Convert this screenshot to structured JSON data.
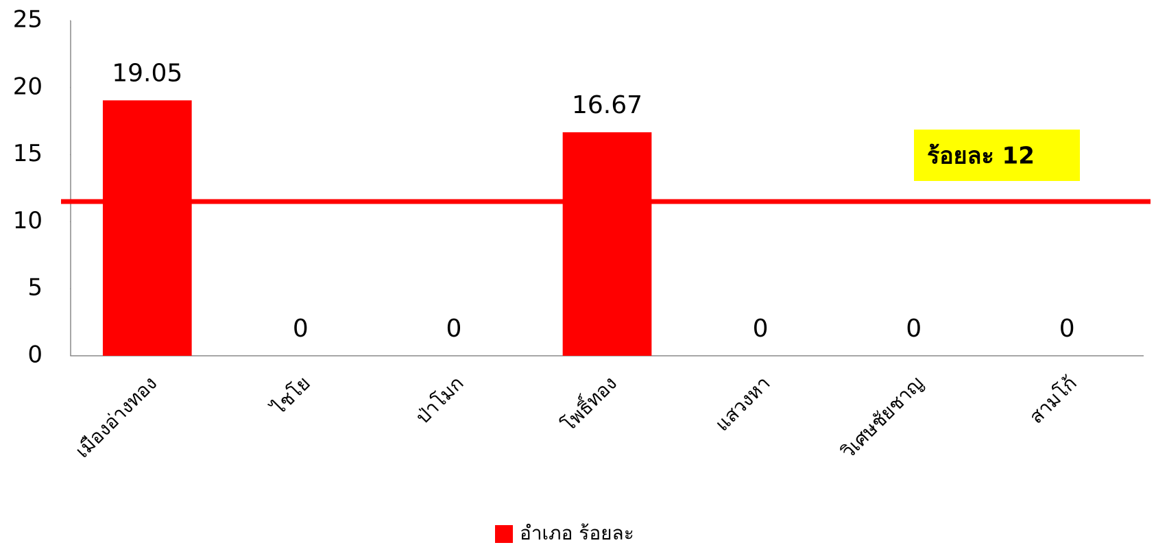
{
  "chart_data": {
    "type": "bar",
    "categories": [
      "เมืองอ่างทอง",
      "ไชโย",
      "ป่าโมก",
      "โพธิ์ทอง",
      "แสวงหา",
      "วิเศษชัยชาญ",
      "สามโก้"
    ],
    "series": [
      {
        "name": "อำเภอ ร้อยละ",
        "color": "#ff0000",
        "values": [
          19.05,
          0,
          0,
          16.67,
          0,
          0,
          0
        ]
      }
    ],
    "ylim": [
      0,
      25
    ],
    "yticks": [
      0,
      5,
      10,
      15,
      20,
      25
    ],
    "reference_line": {
      "value": 11.5,
      "color": "#ff0000"
    },
    "annotation": {
      "text": "ร้อยละ 12",
      "background": "#ffff00"
    },
    "legend": "bottom"
  }
}
